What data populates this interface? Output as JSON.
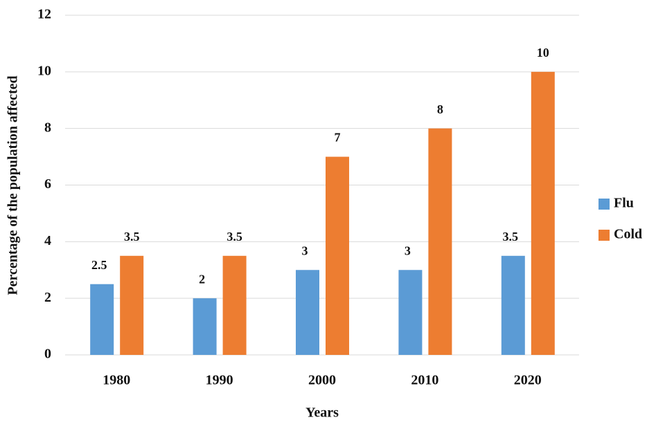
{
  "chart_data": {
    "type": "bar",
    "x_label": "Years",
    "y_label": "Percentage of the population affected",
    "categories": [
      "1980",
      "1990",
      "2000",
      "2010",
      "2020"
    ],
    "series": [
      {
        "name": "Flu",
        "color": "#5b9bd5",
        "values": [
          2.5,
          2,
          3,
          3,
          3.5
        ]
      },
      {
        "name": "Cold",
        "color": "#ed7d31",
        "values": [
          3.5,
          3.5,
          7,
          8,
          10
        ]
      }
    ],
    "ylim": [
      0,
      12
    ],
    "yticks": [
      0,
      2,
      4,
      6,
      8,
      10,
      12
    ],
    "grid": true,
    "legend": "right"
  }
}
